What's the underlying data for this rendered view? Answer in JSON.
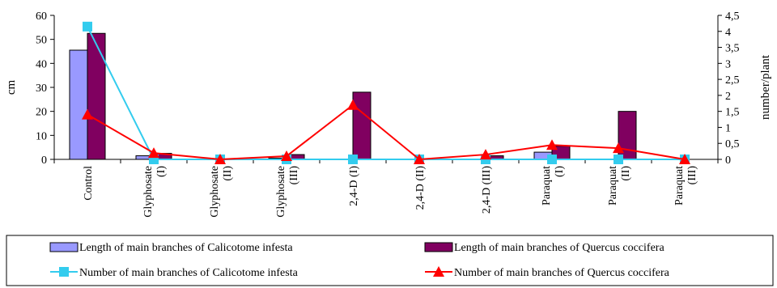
{
  "chart_data": {
    "type": "bar+line",
    "categories": [
      [
        "Control"
      ],
      [
        "Glyphosate",
        "(I)"
      ],
      [
        "Glyphosate",
        "(II)"
      ],
      [
        "Glyphosate",
        "(III)"
      ],
      [
        "2,4-D (I)"
      ],
      [
        "2,4-D (II)"
      ],
      [
        "2,4-D (III)"
      ],
      [
        "Paraquat",
        "(I)"
      ],
      [
        "Paraquat",
        "(II)"
      ],
      [
        "Paraquat",
        "(III)"
      ]
    ],
    "ylabel_left": "cm",
    "ylabel_right": "number/plant",
    "ylim_left": [
      0,
      60
    ],
    "yticks_left": [
      "0",
      "10",
      "20",
      "30",
      "40",
      "50",
      "60"
    ],
    "ylim_right": [
      0,
      4.5
    ],
    "yticks_right": [
      "0",
      "0,5",
      "1",
      "1,5",
      "2",
      "2,5",
      "3",
      "3,5",
      "4",
      "4,5"
    ],
    "bar_series": [
      {
        "name": "Length of main branches of Calicotome infesta",
        "color": "#9999ff",
        "axis": "left",
        "values": [
          45.5,
          1.5,
          0,
          0.5,
          0,
          0,
          0,
          3,
          0,
          0
        ]
      },
      {
        "name": "Length of main branches of Quercus coccifera",
        "color": "#800060",
        "axis": "left",
        "values": [
          52.5,
          2.5,
          0,
          2,
          28,
          0,
          1.5,
          5.5,
          20,
          0
        ]
      }
    ],
    "line_series": [
      {
        "name": "Number of main branches of Calicotome infesta",
        "color": "#33ccee",
        "marker": "square",
        "axis": "right",
        "values": [
          4.15,
          0,
          0,
          0,
          0,
          0,
          0,
          0,
          0,
          0
        ]
      },
      {
        "name": "Number of main branches of Quercus coccifera",
        "color": "#ff0000",
        "marker": "triangle",
        "axis": "right",
        "values": [
          1.4,
          0.2,
          0,
          0.1,
          1.7,
          0,
          0.15,
          0.45,
          0.35,
          0
        ]
      }
    ],
    "legend_position": "bottom"
  }
}
